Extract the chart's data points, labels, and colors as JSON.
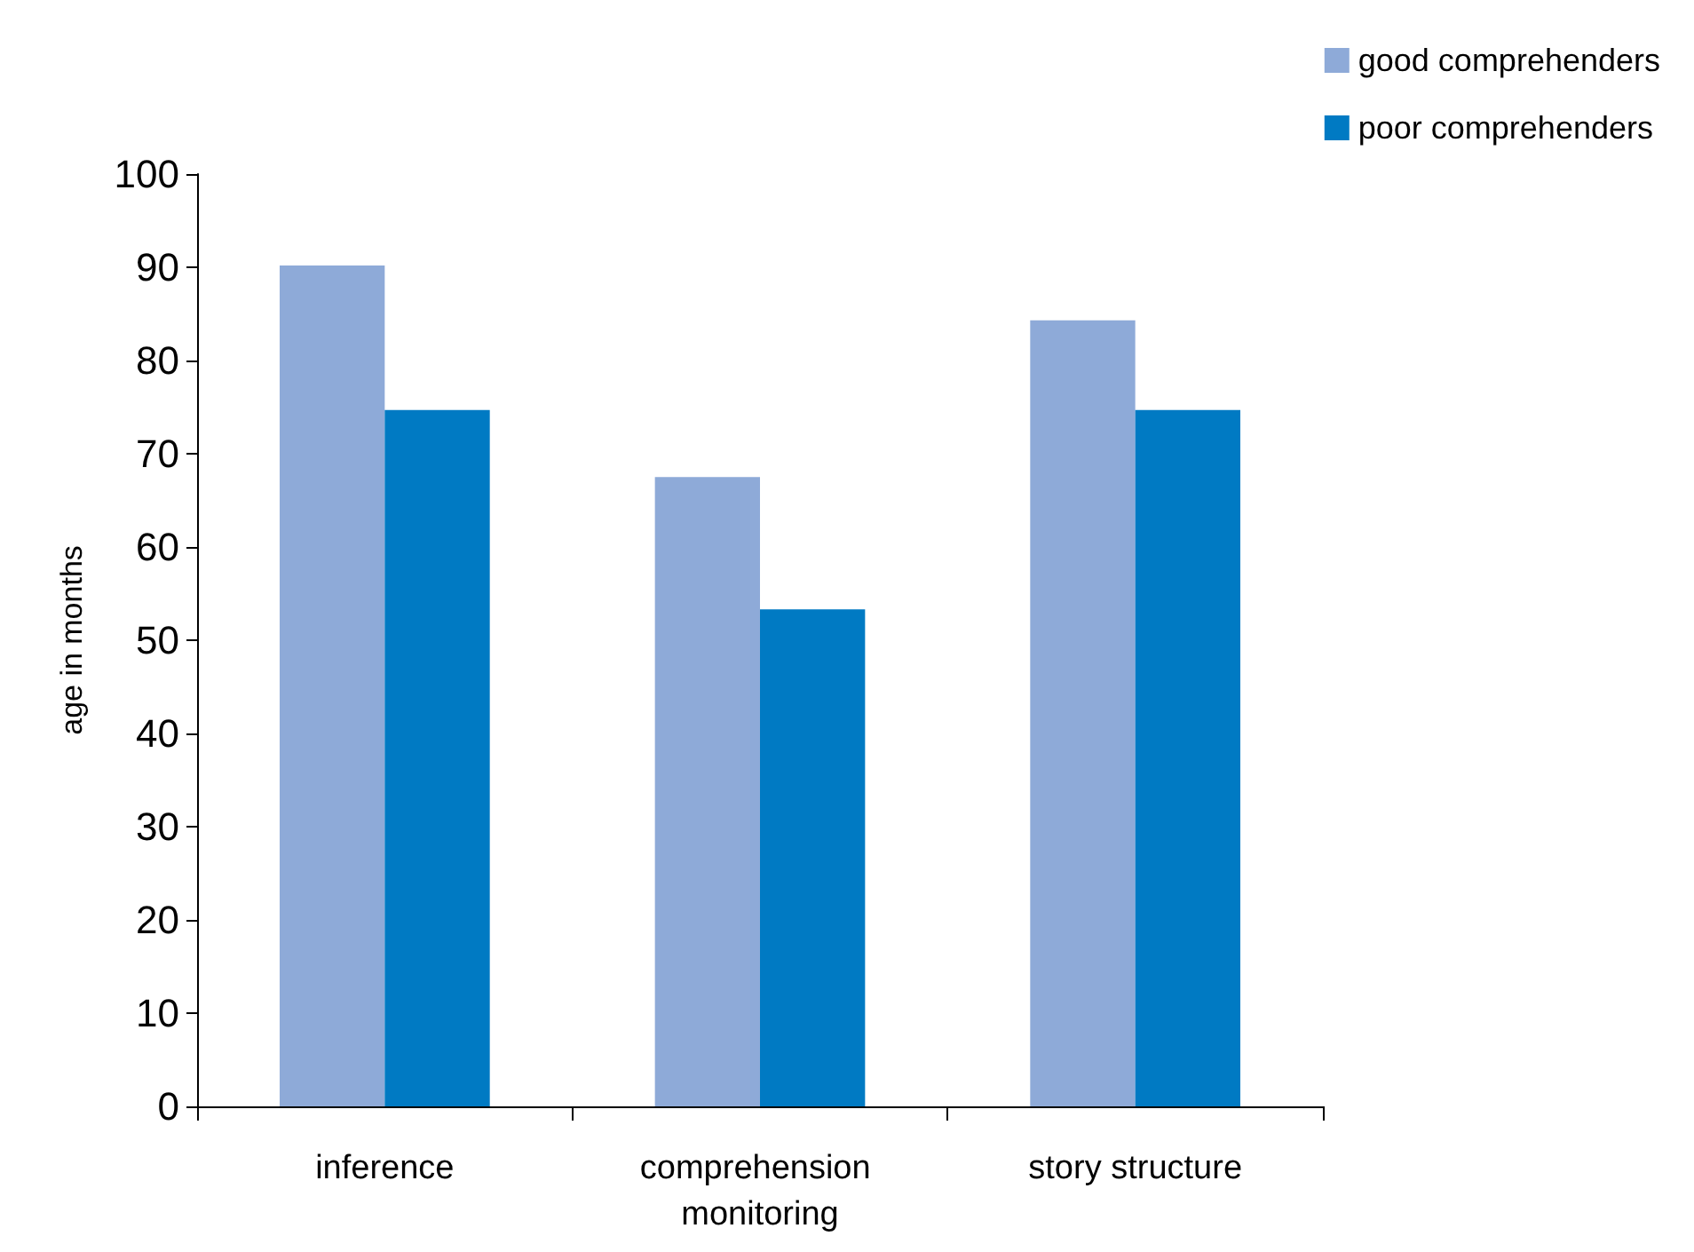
{
  "chart_data": {
    "type": "bar",
    "ylabel": "age in months",
    "categories": [
      "inference",
      "comprehension monitoring",
      "story structure"
    ],
    "series": [
      {
        "name": "good comprehenders",
        "color": "#8eaad8",
        "values": [
          90.2,
          67.5,
          84.3
        ]
      },
      {
        "name": "poor comprehenders",
        "color": "#007ac3",
        "values": [
          74.7,
          53.3,
          74.7
        ]
      }
    ],
    "ylim": [
      0,
      100
    ],
    "yticks": [
      0,
      10,
      20,
      30,
      40,
      50,
      60,
      70,
      80,
      90,
      100
    ],
    "grid": false,
    "legend": "top right"
  }
}
